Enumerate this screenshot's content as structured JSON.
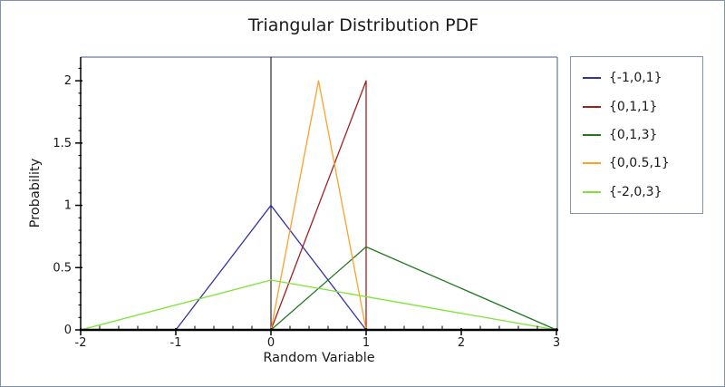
{
  "window": {
    "border_color": "#7E93AF",
    "background": "#ffffff"
  },
  "chart_data": {
    "type": "line",
    "title": "Triangular Distribution PDF",
    "xlabel": "Random Variable",
    "ylabel": "Probability",
    "xlim": [
      -2,
      3
    ],
    "ylim": [
      0,
      2.19
    ],
    "x_major_ticks": [
      -2,
      -1,
      0,
      1,
      2,
      3
    ],
    "x_tick_labels": [
      "-2",
      "-1",
      "0",
      "1",
      "2",
      "3"
    ],
    "x_minor_step": 0.2,
    "y_major_ticks": [
      0,
      0.5,
      1,
      1.5,
      2
    ],
    "y_tick_labels": [
      "0",
      "0.5",
      "1",
      "1.5",
      "2"
    ],
    "y_minor_step": 0.1,
    "grid": false,
    "legend_position": "outside-right",
    "frame_color": "#8494AB",
    "axis_color": "#000000",
    "text_color": "#1a1a1a",
    "vertical_line_x": 0,
    "series": [
      {
        "name": "{-1,0,1}",
        "color": "#3232A8",
        "points": [
          [
            -1,
            0
          ],
          [
            0,
            1
          ],
          [
            1,
            0
          ]
        ]
      },
      {
        "name": "{0,1,1}",
        "color": "#A02020",
        "points": [
          [
            0,
            0
          ],
          [
            1,
            2
          ],
          [
            1,
            0
          ]
        ]
      },
      {
        "name": "{0,1,3}",
        "color": "#207820",
        "points": [
          [
            0,
            0
          ],
          [
            1,
            0.6667
          ],
          [
            3,
            0
          ]
        ]
      },
      {
        "name": "{0,0.5,1}",
        "color": "#FFA028",
        "points": [
          [
            0,
            0
          ],
          [
            0.5,
            2
          ],
          [
            1,
            0
          ]
        ]
      },
      {
        "name": "{-2,0,3}",
        "color": "#7DE434",
        "points": [
          [
            -2,
            0
          ],
          [
            0,
            0.4
          ],
          [
            3,
            0
          ]
        ]
      }
    ]
  }
}
